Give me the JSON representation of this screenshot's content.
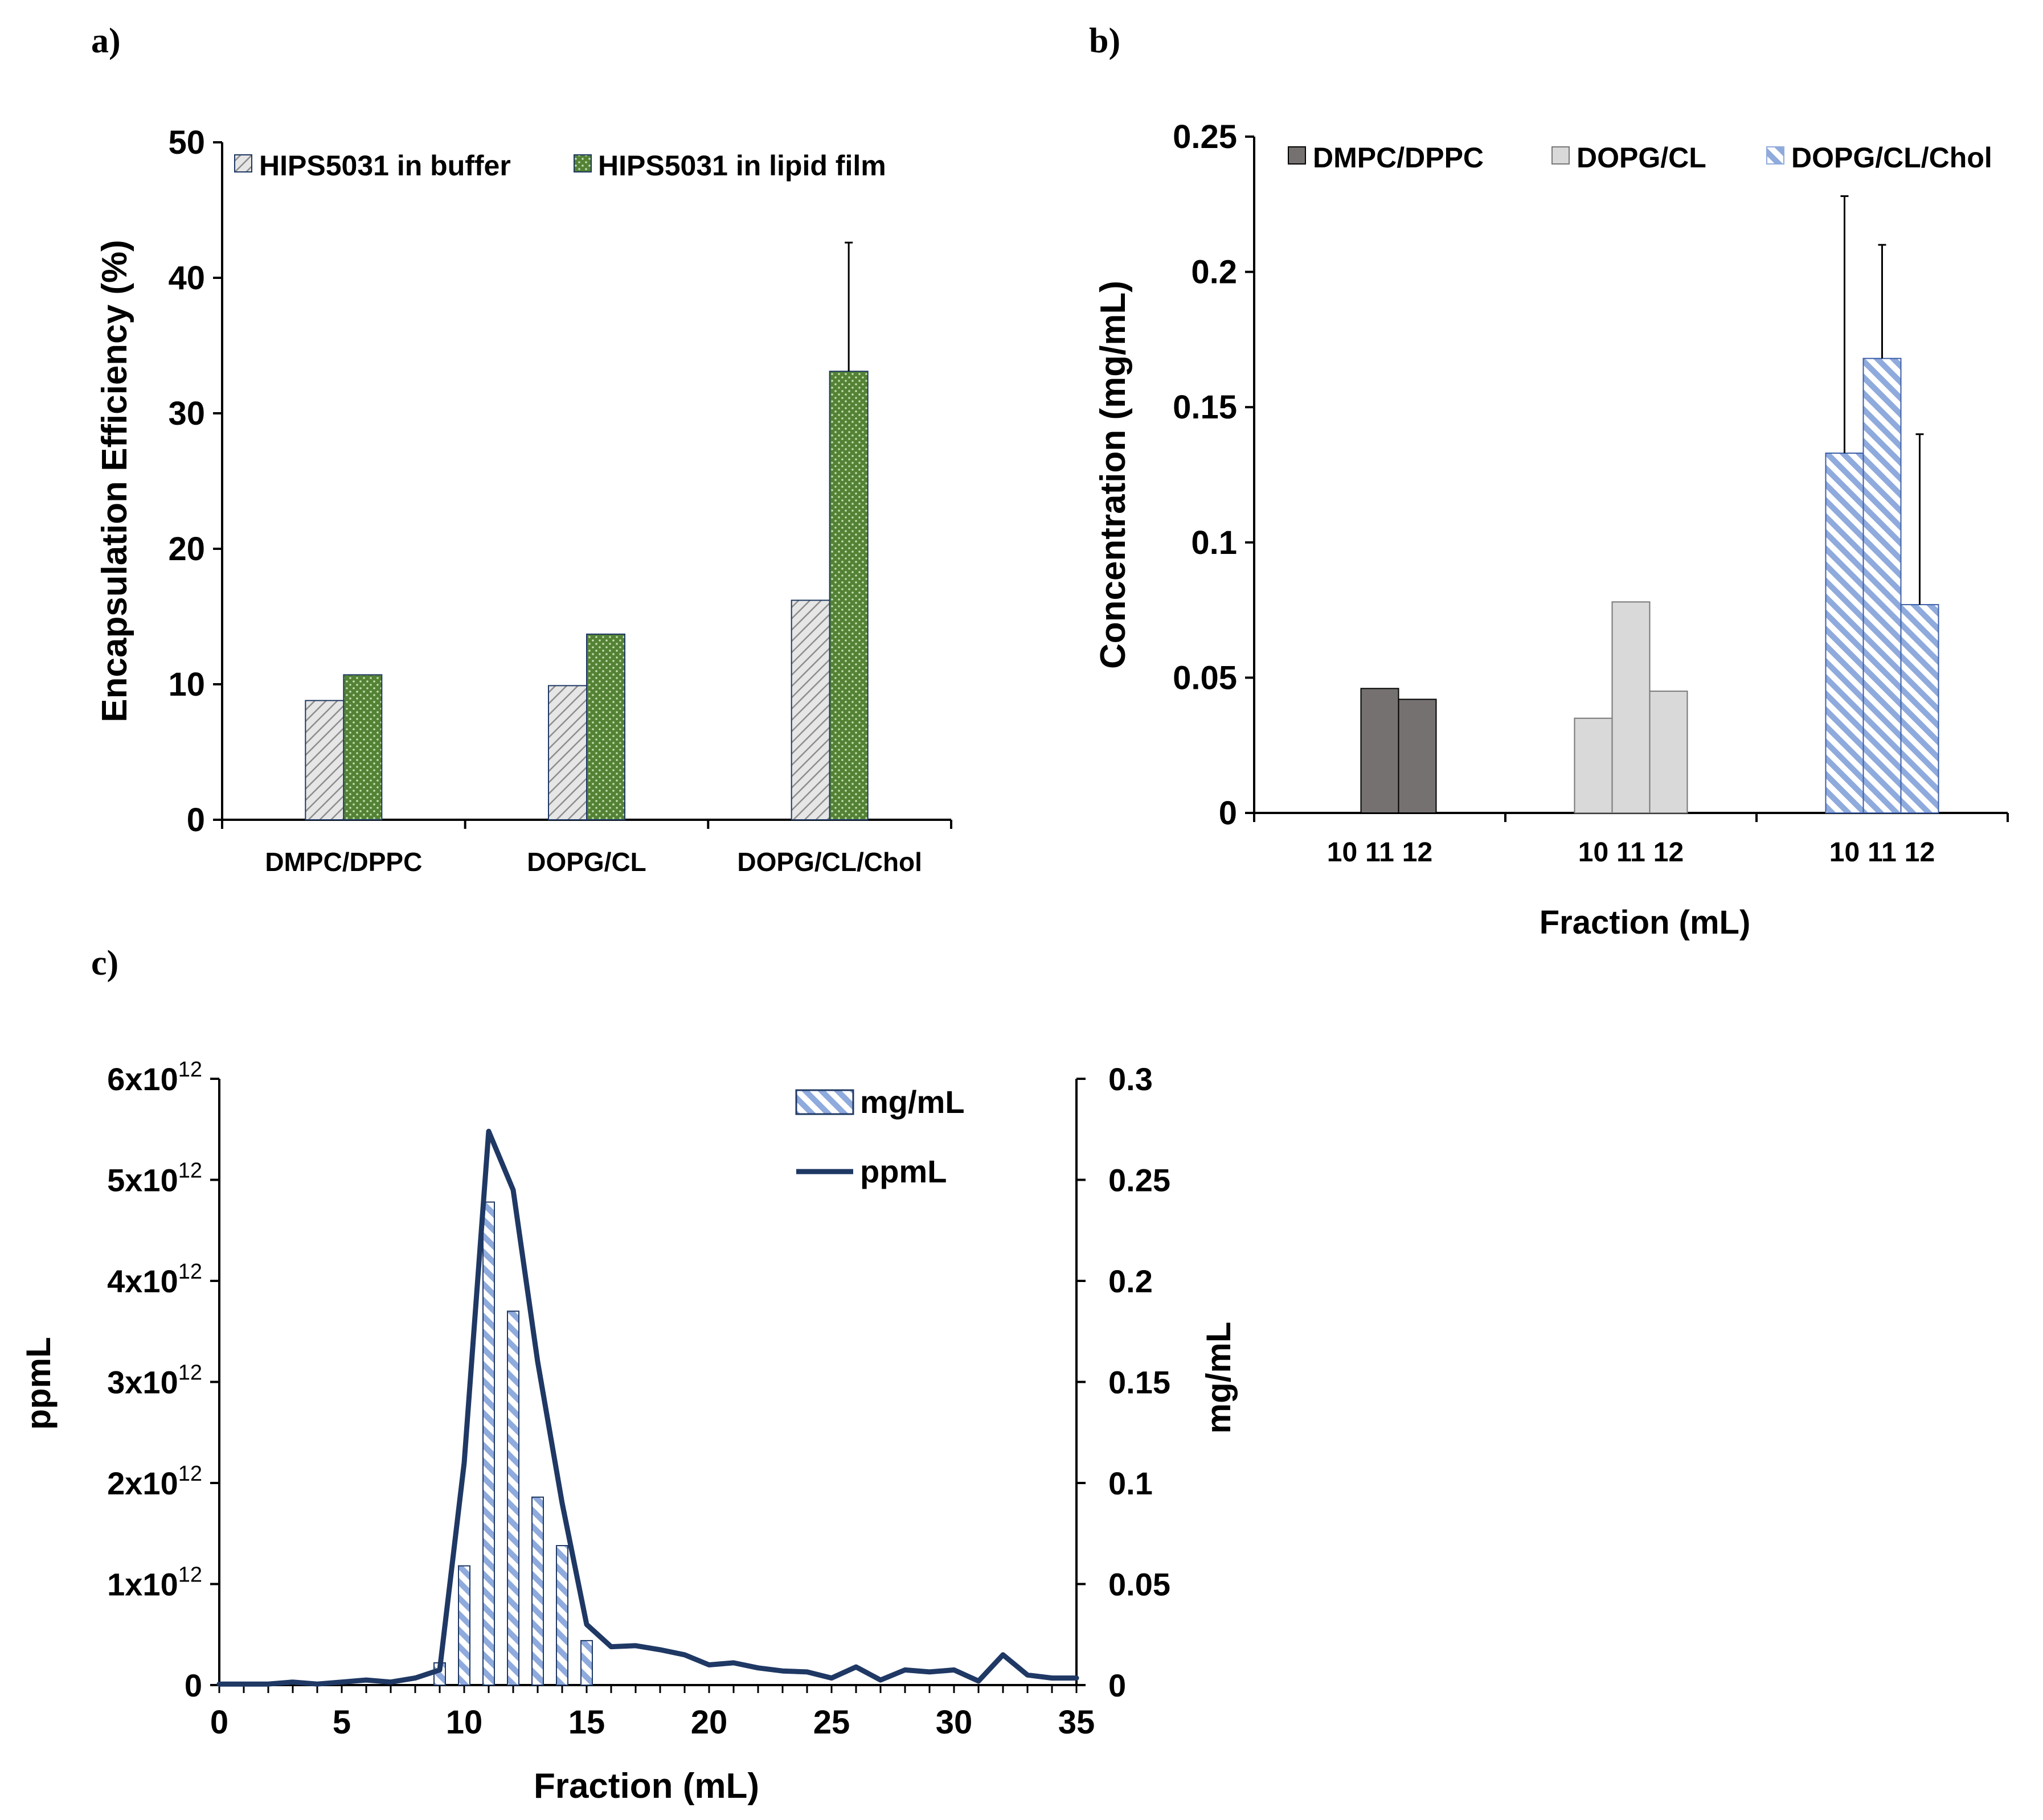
{
  "chart_data": [
    {
      "panel_label": "a)",
      "type": "bar",
      "title": "",
      "xlabel": "",
      "ylabel": "Encapsulation Efficiency (%)",
      "ylim": [
        0,
        50
      ],
      "yticks": [
        "0",
        "10",
        "20",
        "30",
        "40",
        "50"
      ],
      "categories": [
        "DMPC/DPPC",
        "DOPG/CL",
        "DOPG/CL/Chol"
      ],
      "series": [
        {
          "name": "HIPS5031 in buffer",
          "values": [
            8.8,
            9.9,
            16.2
          ],
          "errors": [
            0,
            0,
            0
          ],
          "color": "#d9d9d9",
          "pattern": "diagonal-gray"
        },
        {
          "name": "HIPS5031 in lipid film",
          "values": [
            10.7,
            13.7,
            33.1
          ],
          "errors": [
            0,
            0,
            9.5
          ],
          "color": "#548235",
          "pattern": "dots-green"
        }
      ],
      "legend_position": "top"
    },
    {
      "panel_label": "b)",
      "type": "bar",
      "title": "",
      "xlabel": "Fraction (mL)",
      "ylabel": "Concentration (mg/mL)",
      "ylim": [
        0,
        0.25
      ],
      "yticks": [
        "0",
        "0.05",
        "0.1",
        "0.15",
        "0.2",
        "0.25"
      ],
      "fraction_labels": [
        "10",
        "11",
        "12"
      ],
      "groups": [
        {
          "name": "DMPC/DPPC",
          "values": [
            0,
            0.046,
            0.042
          ],
          "errors": [
            0,
            0,
            0
          ],
          "color": "#767171",
          "pattern": "solid-dark"
        },
        {
          "name": "DOPG/CL",
          "values": [
            0.035,
            0.078,
            0.045
          ],
          "errors": [
            0,
            0,
            0
          ],
          "color": "#d9d9d9",
          "pattern": "solid-light"
        },
        {
          "name": "DOPG/CL/Chol",
          "values": [
            0.133,
            0.168,
            0.077
          ],
          "errors": [
            0.095,
            0.042,
            0.063
          ],
          "color": "#8faadc",
          "pattern": "stripe-blue"
        }
      ],
      "legend_position": "top"
    },
    {
      "panel_label": "c)",
      "type": "bar",
      "title": "",
      "xlabel": "Fraction (mL)",
      "ylabel_left": "ppmL",
      "ylabel_right": "mg/mL",
      "xlim": [
        0,
        35
      ],
      "xticks": [
        "0",
        "5",
        "10",
        "15",
        "20",
        "25",
        "30",
        "35"
      ],
      "ylim_left": [
        0,
        6000000000000.0
      ],
      "yticks_left": [
        {
          "base": "0",
          "exp": ""
        },
        {
          "base": "1x10",
          "exp": "12"
        },
        {
          "base": "2x10",
          "exp": "12"
        },
        {
          "base": "3x10",
          "exp": "12"
        },
        {
          "base": "4x10",
          "exp": "12"
        },
        {
          "base": "5x10",
          "exp": "12"
        },
        {
          "base": "6x10",
          "exp": "12"
        }
      ],
      "ylim_right": [
        0,
        0.3
      ],
      "yticks_right": [
        "0",
        "0.05",
        "0.1",
        "0.15",
        "0.2",
        "0.25",
        "0.3"
      ],
      "bars": {
        "name": "mg/mL",
        "axis": "right",
        "x": [
          9,
          10,
          11,
          12,
          13,
          14,
          15
        ],
        "values": [
          0.011,
          0.059,
          0.239,
          0.185,
          0.093,
          0.069,
          0.022
        ],
        "color": "#8faadc",
        "pattern": "stripe-blue"
      },
      "line": {
        "name": "ppmL",
        "axis": "left",
        "color": "#1f3864",
        "x": [
          0,
          1,
          2,
          3,
          4,
          5,
          6,
          7,
          8,
          9,
          10,
          11,
          12,
          13,
          14,
          15,
          16,
          17,
          18,
          19,
          20,
          21,
          22,
          23,
          24,
          25,
          26,
          27,
          28,
          29,
          30,
          31,
          32,
          33,
          34,
          35
        ],
        "values": [
          10000000000.0,
          10000000000.0,
          10000000000.0,
          30000000000.0,
          10000000000.0,
          30000000000.0,
          50000000000.0,
          30000000000.0,
          70000000000.0,
          150000000000.0,
          2200000000000.0,
          5480000000000.0,
          4900000000000.0,
          3200000000000.0,
          1800000000000.0,
          600000000000.0,
          380000000000.0,
          390000000000.0,
          350000000000.0,
          300000000000.0,
          200000000000.0,
          220000000000.0,
          170000000000.0,
          140000000000.0,
          130000000000.0,
          70000000000.0,
          180000000000.0,
          50000000000.0,
          150000000000.0,
          130000000000.0,
          150000000000.0,
          40000000000.0,
          300000000000.0,
          100000000000.0,
          70000000000.0,
          70000000000.0
        ]
      },
      "legend_position": "top-right"
    }
  ]
}
